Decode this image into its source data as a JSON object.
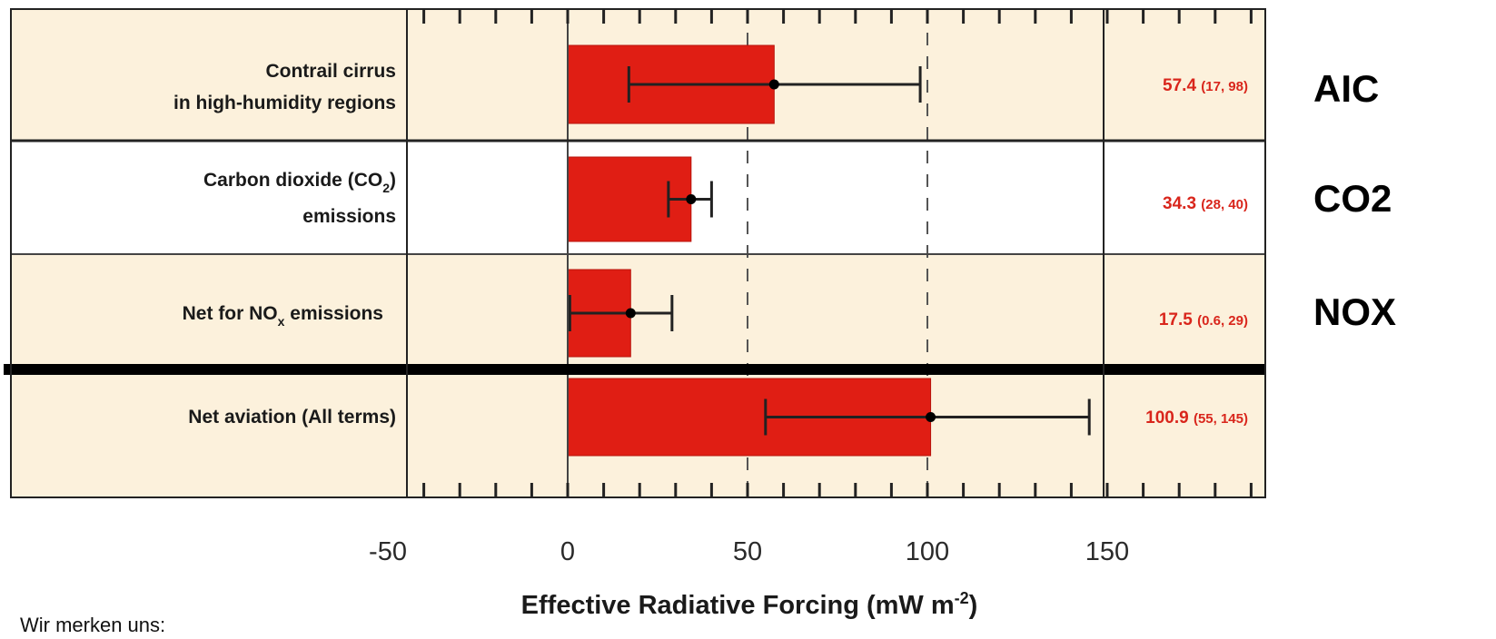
{
  "chart_data": {
    "type": "bar",
    "orientation": "horizontal",
    "xlabel": "Effective Radiative Forcing",
    "xlabel_unit": "(mW m",
    "xlabel_exp": "-2",
    "xlabel_close": ")",
    "xlim": [
      -60,
      195
    ],
    "ticks": [
      -50,
      0,
      50,
      100,
      150
    ],
    "tick_labels": [
      "-50",
      "0",
      "50",
      "100",
      "150"
    ],
    "bar_color": "#e01e14",
    "row_colors": [
      "#fcf1dc",
      "#ffffff",
      "#fcf1dc",
      "#fcf1dc"
    ],
    "rows": [
      {
        "label_lines": [
          "Contrail cirrus",
          "in high-humidity regions"
        ],
        "value": 57.4,
        "low": 17,
        "high": 98,
        "value_text": "57.4",
        "ci_text": "(17, 98)",
        "tag": "AIC"
      },
      {
        "label_lines": [
          "Carbon dioxide (CO",
          "2",
          ")",
          "emissions"
        ],
        "value": 34.3,
        "low": 28,
        "high": 40,
        "value_text": "34.3",
        "ci_text": "(28, 40)",
        "tag": "CO2"
      },
      {
        "label_lines": [
          "Net for NO",
          "x",
          " emissions"
        ],
        "value": 17.5,
        "low": 0.6,
        "high": 29,
        "value_text": "17.5",
        "ci_text": "(0.6, 29)",
        "tag": "NOX"
      },
      {
        "label_lines": [
          "Net aviation (All terms)"
        ],
        "value": 100.9,
        "low": 55,
        "high": 145,
        "value_text": "100.9",
        "ci_text": "(55, 145)",
        "tag": ""
      }
    ]
  },
  "footnote": "Wir merken uns:"
}
